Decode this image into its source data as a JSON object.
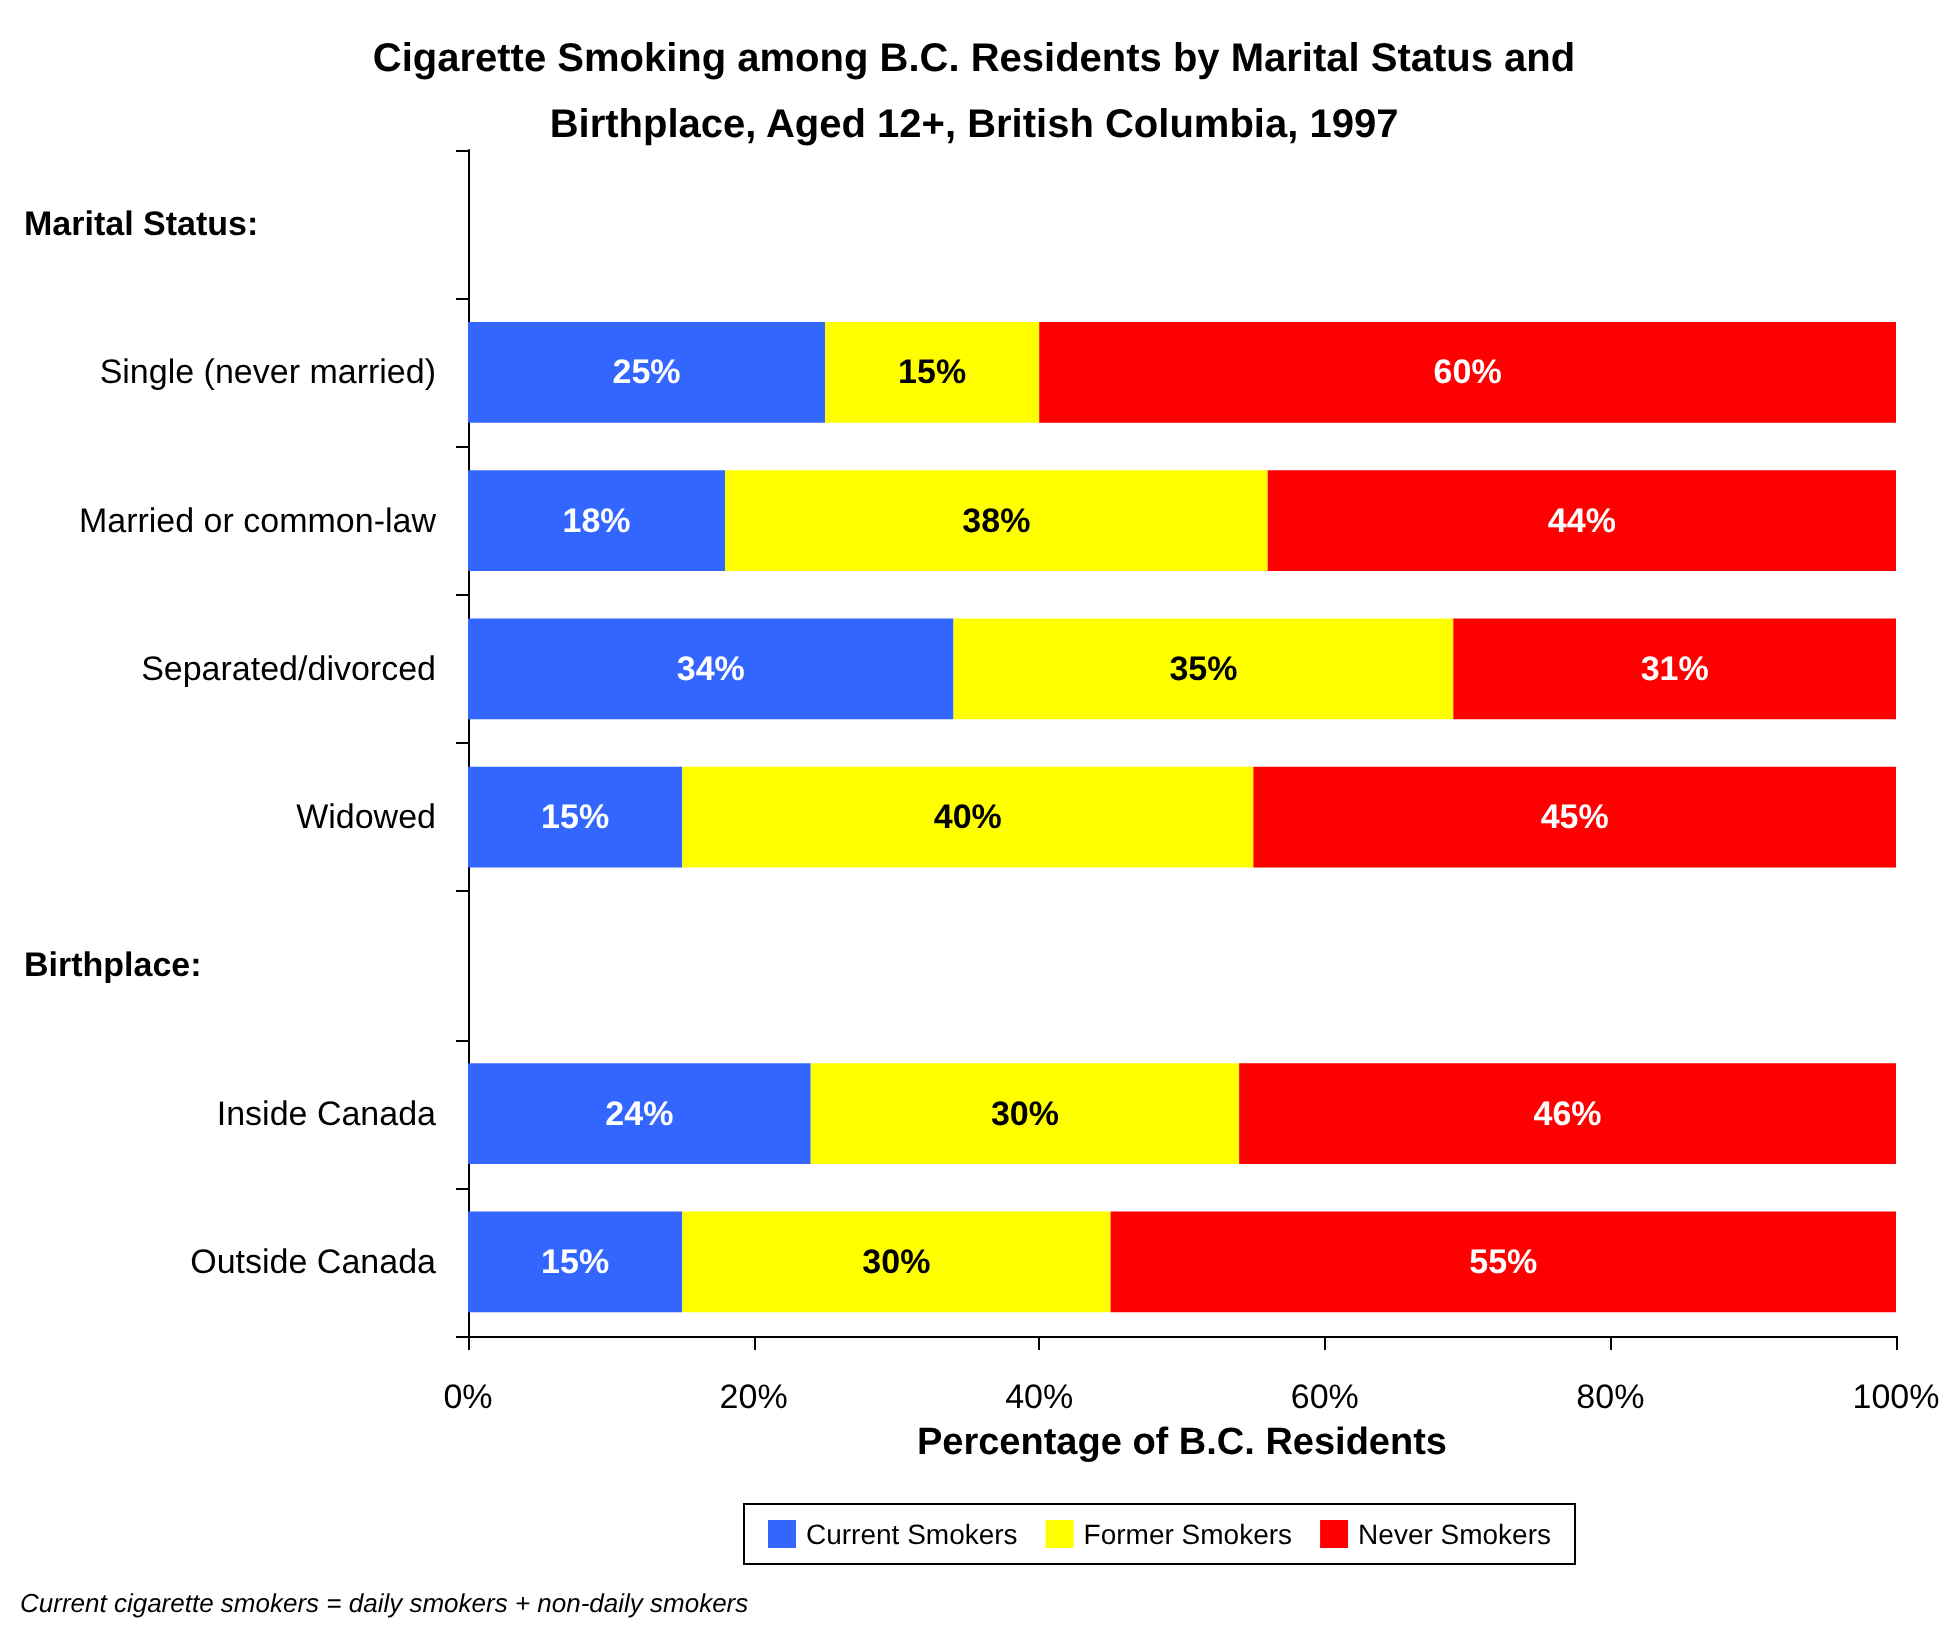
{
  "chart_data": {
    "type": "bar",
    "orientation": "horizontal",
    "stacked": true,
    "title": "Cigarette Smoking among B.C. Residents by Marital Status and\nBirthplace, Aged 12+, British Columbia, 1997",
    "xlabel": "Percentage of B.C. Residents",
    "categories": [
      null,
      "Single (never married)",
      "Married or common-law",
      "Separated/divorced",
      "Widowed",
      null,
      "Inside Canada",
      "Outside Canada"
    ],
    "series": [
      {
        "name": "Current Smokers",
        "color": "#3366ff",
        "values": [
          null,
          25,
          18,
          34,
          15,
          null,
          24,
          15
        ],
        "value_labels": [
          null,
          "25%",
          "18%",
          "34%",
          "15%",
          null,
          "24%",
          "15%"
        ]
      },
      {
        "name": "Former Smokers",
        "color": "#ffff00",
        "values": [
          null,
          15,
          38,
          35,
          40,
          null,
          30,
          30
        ],
        "value_labels": [
          null,
          "15%",
          "38%",
          "35%",
          "40%",
          null,
          "30%",
          "30%"
        ]
      },
      {
        "name": "Never Smokers",
        "color": "#ff0000",
        "values": [
          null,
          60,
          44,
          31,
          45,
          null,
          46,
          55
        ],
        "value_labels": [
          null,
          "60%",
          "44%",
          "31%",
          "45%",
          null,
          "46%",
          "55%"
        ]
      }
    ],
    "xlim": [
      0,
      100
    ],
    "xticks": [
      {
        "value": 0,
        "label": "0%"
      },
      {
        "value": 20,
        "label": "20%"
      },
      {
        "value": 40,
        "label": "40%"
      },
      {
        "value": 60,
        "label": "60%"
      },
      {
        "value": 80,
        "label": "80%"
      },
      {
        "value": 100,
        "label": "100%"
      }
    ],
    "legend": "bottom",
    "annotations": [
      "Marital Status:",
      "Birthplace:",
      "Current cigarette smokers = daily smokers + non-daily smokers"
    ]
  }
}
